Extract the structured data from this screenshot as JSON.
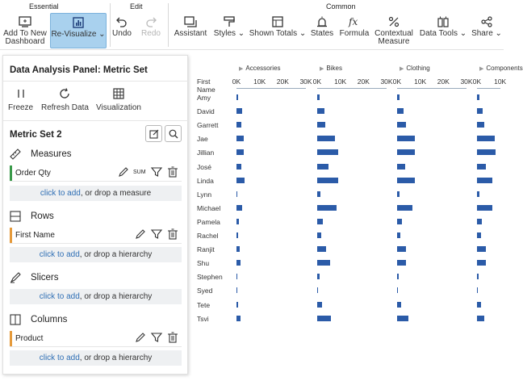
{
  "toolbar": {
    "groups": {
      "essential": "Essential",
      "edit": "Edit",
      "common": "Common"
    },
    "add_dashboard": "Add To New Dashboard",
    "add_dashboard_l1": "Add To New",
    "add_dashboard_l2": "Dashboard",
    "revisualize": "Re-Visualize ⌄",
    "undo": "Undo",
    "redo": "Redo",
    "assistant": "Assistant",
    "styles": "Styles ⌄",
    "shown_totals": "Shown Totals ⌄",
    "states": "States",
    "formula": "Formula",
    "contextual_l1": "Contextual",
    "contextual_l2": "Measure",
    "data_tools": "Data Tools ⌄",
    "share": "Share ⌄"
  },
  "panel": {
    "title": "Data Analysis Panel: Metric Set",
    "freeze": "Freeze",
    "refresh": "Refresh Data",
    "visualization": "Visualization",
    "set_name": "Metric Set 2",
    "measures": {
      "heading": "Measures",
      "field": "Order Qty",
      "agg": "SUM",
      "drop_link": "click to add",
      "drop_rest": ", or drop a measure"
    },
    "rows": {
      "heading": "Rows",
      "field": "First Name",
      "drop_link": "click to add",
      "drop_rest": ", or drop a hierarchy"
    },
    "slicers": {
      "heading": "Slicers",
      "drop_link": "click to add",
      "drop_rest": ", or drop a hierarchy"
    },
    "columns": {
      "heading": "Columns",
      "field": "Product",
      "drop_link": "click to add",
      "drop_rest": ", or drop a hierarchy"
    },
    "colors": {
      "measure_bar": "#3a9a4a",
      "row_bar": "#e59a3b",
      "column_bar": "#e59a3b"
    }
  },
  "chart_data": {
    "type": "bar",
    "orientation": "horizontal-small-multiples",
    "row_header": "First Name",
    "rows": [
      "Amy",
      "David",
      "Garrett",
      "Jae",
      "Jillian",
      "José",
      "Linda",
      "Lynn",
      "Michael",
      "Pamela",
      "Rachel",
      "Ranjit",
      "Shu",
      "Stephen",
      "Syed",
      "Tete",
      "Tsvi"
    ],
    "panels": [
      {
        "name": "Accessories",
        "ticks": [
          "0K",
          "10K",
          "20K",
          "30K"
        ],
        "values": [
          600,
          2600,
          2000,
          3000,
          3000,
          2200,
          3500,
          500,
          2500,
          900,
          600,
          1300,
          1600,
          400,
          100,
          700,
          1700
        ]
      },
      {
        "name": "Bikes",
        "ticks": [
          "0K",
          "10K",
          "20K",
          "30K"
        ],
        "values": [
          1200,
          3000,
          3500,
          7500,
          9000,
          5000,
          9000,
          1500,
          8500,
          2500,
          1800,
          4000,
          5500,
          900,
          200,
          2000,
          6000
        ]
      },
      {
        "name": "Clothing",
        "ticks": [
          "0K",
          "10K",
          "20K",
          "30K"
        ],
        "values": [
          900,
          2800,
          4000,
          7500,
          7500,
          3500,
          7500,
          1200,
          6500,
          2000,
          1500,
          4000,
          4000,
          700,
          150,
          1800,
          5000
        ]
      },
      {
        "name": "Components",
        "ticks": [
          "0K",
          "10K"
        ],
        "values": [
          1000,
          2600,
          3000,
          7500,
          8000,
          4000,
          6500,
          1000,
          6500,
          2200,
          1800,
          3700,
          3700,
          800,
          150,
          1800,
          3300
        ]
      }
    ],
    "axis_max": 30000,
    "bar_color": "#2b5ba8"
  }
}
